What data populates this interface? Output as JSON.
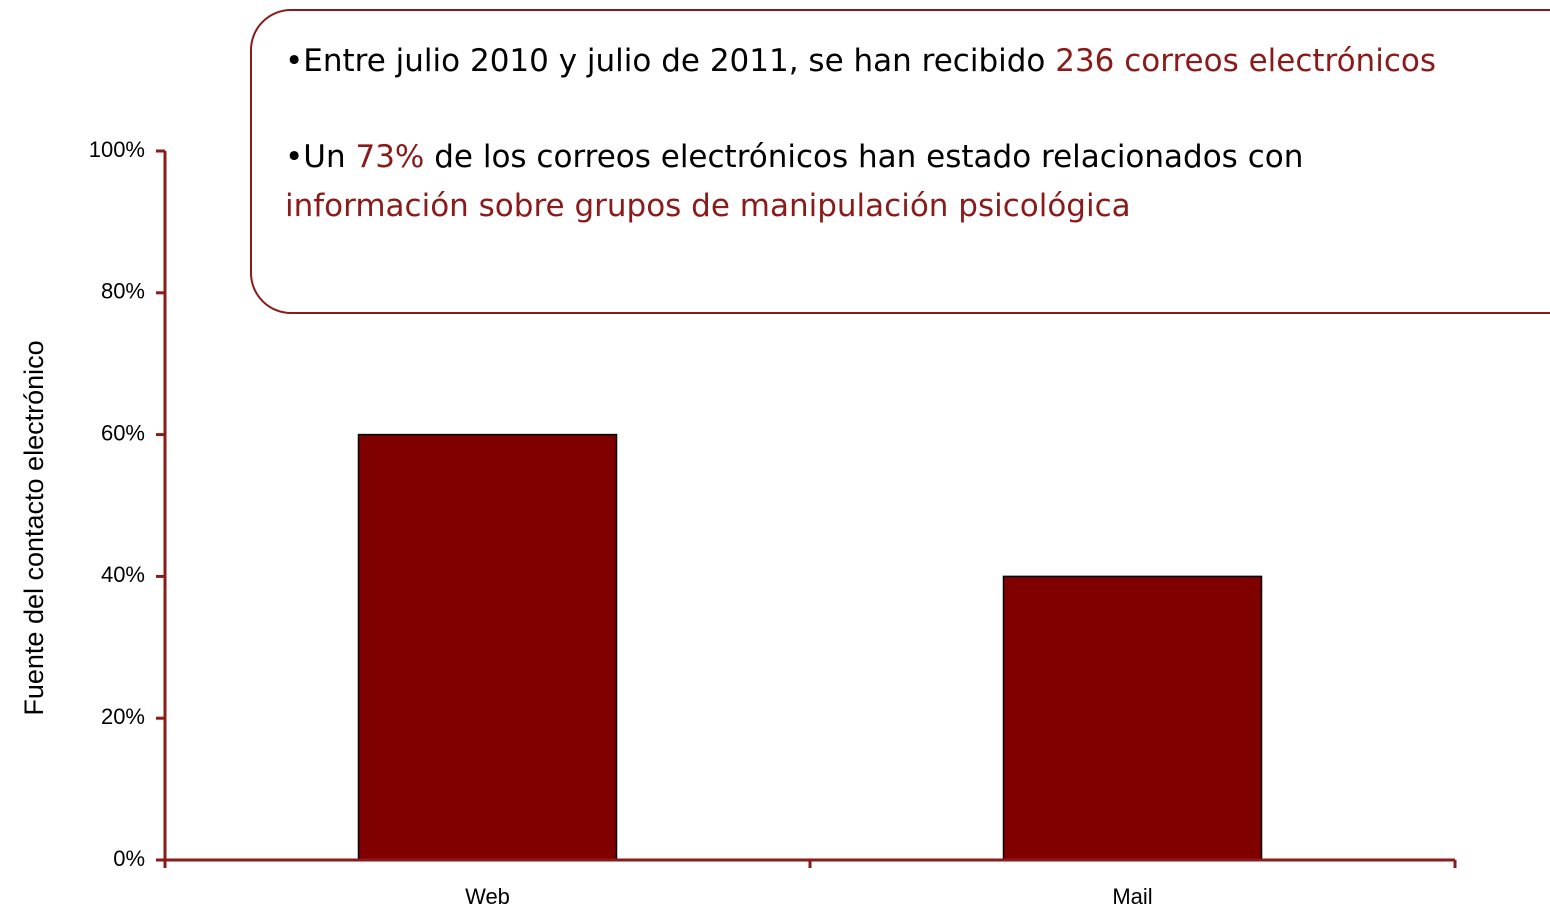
{
  "chart_data": {
    "type": "bar",
    "ylabel": "Fuente del contacto electrónico",
    "categories": [
      "Web",
      "Mail"
    ],
    "values": [
      60,
      40
    ],
    "color": "#800000",
    "axis_color": "#8b1a1a",
    "ylim": [
      0,
      100
    ],
    "yticks": [
      {
        "value": 0,
        "label": "0%"
      },
      {
        "value": 20,
        "label": "20%"
      },
      {
        "value": 40,
        "label": "40%"
      },
      {
        "value": 60,
        "label": "60%"
      },
      {
        "value": 80,
        "label": "80%"
      },
      {
        "value": 100,
        "label": "100%"
      }
    ],
    "grid": false,
    "annotation": {
      "lines": [
        [
          {
            "text": "•Entre julio 2010 y julio de 2011, se han recibido ",
            "color": "#000000"
          },
          {
            "text": "236 correos electrónicos",
            "color": "#8b1a1a"
          }
        ],
        [
          {
            "text": "•Un ",
            "color": "#000000"
          },
          {
            "text": "73%",
            "color": "#8b1a1a"
          },
          {
            "text": " de los correos electrónicos han estado relacionados con",
            "color": "#000000"
          }
        ],
        [
          {
            "text": "información sobre grupos de manipulación psicológica",
            "color": "#8b1a1a"
          }
        ]
      ]
    }
  }
}
